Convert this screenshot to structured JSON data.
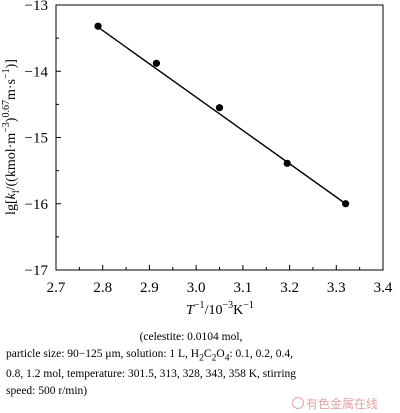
{
  "chart_data": {
    "type": "scatter",
    "x": [
      2.79,
      2.915,
      3.05,
      3.195,
      3.32
    ],
    "y": [
      -13.32,
      -13.88,
      -14.55,
      -15.39,
      -16.0
    ],
    "trendline": {
      "x": [
        2.795,
        3.32
      ],
      "y": [
        -13.36,
        -16.0
      ]
    },
    "xlim": [
      2.7,
      3.4
    ],
    "ylim": [
      -17,
      -13
    ],
    "xticks": [
      "2.7",
      "2.8",
      "2.9",
      "3.0",
      "3.1",
      "3.2",
      "3.3",
      "3.4"
    ],
    "yticks": [
      "−13",
      "−14",
      "−15",
      "−16",
      "−17"
    ],
    "xlabel": {
      "main": "T",
      "sup1": "−1",
      "mid": "/10",
      "sup2": "−3",
      "unit": "K",
      "sup3": "−1"
    },
    "ylabel": {
      "pre": "lg[",
      "k": "k",
      "sub": "l",
      "a": "/((kmol·m",
      "s1": "−3",
      "b": ")",
      "s2": "0.67",
      "c": "m·s",
      "s3": "−1",
      "d": ")]"
    },
    "grid": false
  },
  "caption": {
    "line1": "(celestite: 0.0104 mol,",
    "line2_pre": "particle size: 90−125 μm, solution: 1 L, H",
    "sub2a": "2",
    "line2_mid": "C",
    "sub2b": "2",
    "line2_mid2": "O",
    "sub2c": "4",
    "line2_post": ": 0.1, 0.2, 0.4,",
    "line3": "0.8, 1.2 mol, temperature: 301.5, 313, 328, 343, 358 K, stirring",
    "line4": "speed: 500 r/min)"
  },
  "watermark": "有色金属在线"
}
